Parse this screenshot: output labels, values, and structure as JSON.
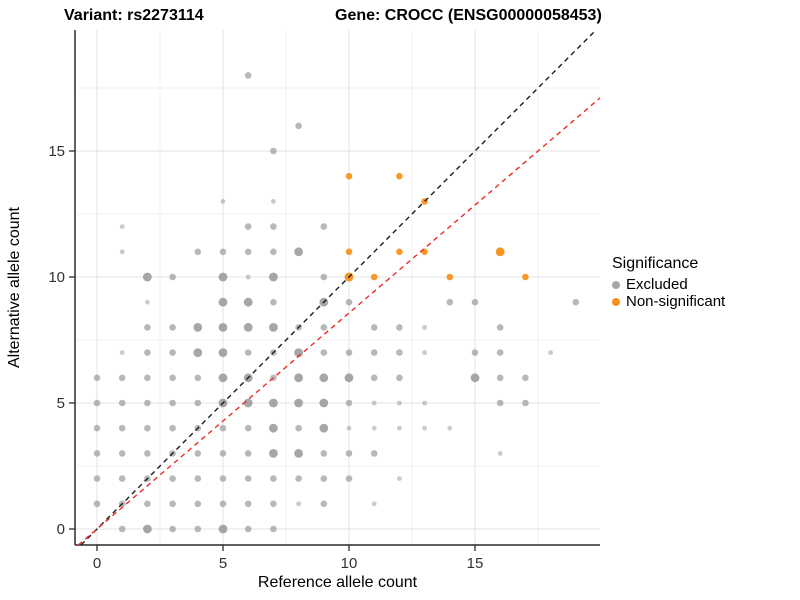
{
  "titles": {
    "variant": "Variant: rs2273114",
    "gene": "Gene: CROCC (ENSG00000058453)"
  },
  "axes": {
    "x": {
      "label": "Reference allele count",
      "tick_values": [
        0,
        5,
        10,
        15
      ],
      "tick_labels": [
        "0",
        "5",
        "10",
        "15"
      ]
    },
    "y": {
      "label": "Alternative allele count",
      "tick_values": [
        0,
        5,
        10,
        15
      ],
      "tick_labels": [
        "0",
        "5",
        "10",
        "15"
      ]
    }
  },
  "legend": {
    "title": "Significance",
    "position": "right",
    "items": [
      {
        "label": "Excluded",
        "color": "#A6A6A6"
      },
      {
        "label": "Non-significant",
        "color": "#F79420"
      }
    ]
  },
  "colors": {
    "background": "#FFFFFF",
    "axis_line": "#2B2B2B",
    "tick_label": "#303030",
    "grid_major": "#E3E3E3",
    "grid_minor": "#F0F0F0",
    "excluded_point": "#969696",
    "non_significant_point": "#F79420",
    "identity_line": "#1A1A1A",
    "fitted_line": "#ED2B24"
  },
  "chart_data": {
    "type": "scatter",
    "title": "Variant: rs2273114  /  Gene: CROCC (ENSG00000058453)",
    "xlabel": "Reference allele count",
    "ylabel": "Alternative allele count",
    "xlim": [
      -0.87,
      19.96
    ],
    "ylim": [
      -0.64,
      19.8
    ],
    "grid": {
      "major": [
        0,
        5,
        10,
        15
      ],
      "minor": [
        2.5,
        7.5,
        12.5,
        17.5
      ],
      "on": true
    },
    "legend_position": "right",
    "radii": {
      "1": 2.4,
      "2": 3.3,
      "3": 4.4
    },
    "series": [
      {
        "name": "Excluded",
        "color": "#969696",
        "opacities": {
          "1": 0.5,
          "2": 0.68,
          "3": 0.85
        },
        "points": [
          [
            6,
            18,
            2
          ],
          [
            8,
            16,
            2
          ],
          [
            7,
            15,
            2
          ],
          [
            5,
            13,
            1
          ],
          [
            7,
            13,
            1
          ],
          [
            1,
            12,
            1
          ],
          [
            6,
            12,
            2
          ],
          [
            7,
            12,
            2
          ],
          [
            9,
            12,
            2
          ],
          [
            1,
            11,
            1
          ],
          [
            4,
            11,
            2
          ],
          [
            5,
            11,
            2
          ],
          [
            6,
            11,
            2
          ],
          [
            7,
            11,
            2
          ],
          [
            8,
            11,
            3
          ],
          [
            2,
            10,
            3
          ],
          [
            3,
            10,
            2
          ],
          [
            5,
            10,
            3
          ],
          [
            6,
            10,
            1
          ],
          [
            7,
            10,
            3
          ],
          [
            9,
            10,
            2
          ],
          [
            2,
            9,
            1
          ],
          [
            5,
            9,
            3
          ],
          [
            6,
            9,
            3
          ],
          [
            7,
            9,
            2
          ],
          [
            9,
            9,
            3
          ],
          [
            10,
            9,
            2
          ],
          [
            14,
            9,
            2
          ],
          [
            15,
            9,
            2
          ],
          [
            19,
            9,
            2
          ],
          [
            2,
            8,
            2
          ],
          [
            3,
            8,
            2
          ],
          [
            4,
            8,
            3
          ],
          [
            5,
            8,
            3
          ],
          [
            6,
            8,
            3
          ],
          [
            7,
            8,
            3
          ],
          [
            8,
            8,
            2
          ],
          [
            9,
            8,
            2
          ],
          [
            11,
            8,
            2
          ],
          [
            12,
            8,
            2
          ],
          [
            13,
            8,
            1
          ],
          [
            16,
            8,
            2
          ],
          [
            1,
            7,
            1
          ],
          [
            2,
            7,
            2
          ],
          [
            3,
            7,
            2
          ],
          [
            4,
            7,
            3
          ],
          [
            5,
            7,
            3
          ],
          [
            6,
            7,
            2
          ],
          [
            7,
            7,
            2
          ],
          [
            8,
            7,
            3
          ],
          [
            9,
            7,
            2
          ],
          [
            10,
            7,
            2
          ],
          [
            11,
            7,
            2
          ],
          [
            12,
            7,
            2
          ],
          [
            13,
            7,
            1
          ],
          [
            15,
            7,
            2
          ],
          [
            16,
            7,
            2
          ],
          [
            18,
            7,
            1
          ],
          [
            0,
            6,
            2
          ],
          [
            1,
            6,
            2
          ],
          [
            2,
            6,
            2
          ],
          [
            3,
            6,
            2
          ],
          [
            4,
            6,
            2
          ],
          [
            5,
            6,
            3
          ],
          [
            6,
            6,
            3
          ],
          [
            7,
            6,
            2
          ],
          [
            8,
            6,
            3
          ],
          [
            9,
            6,
            3
          ],
          [
            10,
            6,
            3
          ],
          [
            11,
            6,
            2
          ],
          [
            12,
            6,
            2
          ],
          [
            15,
            6,
            3
          ],
          [
            16,
            6,
            2
          ],
          [
            17,
            6,
            2
          ],
          [
            0,
            5,
            2
          ],
          [
            1,
            5,
            2
          ],
          [
            2,
            5,
            2
          ],
          [
            3,
            5,
            2
          ],
          [
            4,
            5,
            2
          ],
          [
            5,
            5,
            3
          ],
          [
            6,
            5,
            3
          ],
          [
            7,
            5,
            3
          ],
          [
            8,
            5,
            3
          ],
          [
            9,
            5,
            3
          ],
          [
            10,
            5,
            2
          ],
          [
            11,
            5,
            1
          ],
          [
            12,
            5,
            1
          ],
          [
            13,
            5,
            1
          ],
          [
            16,
            5,
            2
          ],
          [
            17,
            5,
            2
          ],
          [
            0,
            4,
            2
          ],
          [
            1,
            4,
            2
          ],
          [
            2,
            4,
            2
          ],
          [
            3,
            4,
            2
          ],
          [
            4,
            4,
            2
          ],
          [
            5,
            4,
            2
          ],
          [
            6,
            4,
            2
          ],
          [
            7,
            4,
            3
          ],
          [
            8,
            4,
            2
          ],
          [
            9,
            4,
            3
          ],
          [
            10,
            4,
            1
          ],
          [
            11,
            4,
            1
          ],
          [
            12,
            4,
            1
          ],
          [
            13,
            4,
            1
          ],
          [
            14,
            4,
            1
          ],
          [
            0,
            3,
            2
          ],
          [
            1,
            3,
            2
          ],
          [
            2,
            3,
            2
          ],
          [
            3,
            3,
            2
          ],
          [
            4,
            3,
            2
          ],
          [
            5,
            3,
            2
          ],
          [
            6,
            3,
            2
          ],
          [
            7,
            3,
            3
          ],
          [
            8,
            3,
            3
          ],
          [
            9,
            3,
            2
          ],
          [
            10,
            3,
            2
          ],
          [
            11,
            3,
            2
          ],
          [
            16,
            3,
            1
          ],
          [
            0,
            2,
            2
          ],
          [
            1,
            2,
            2
          ],
          [
            2,
            2,
            2
          ],
          [
            3,
            2,
            2
          ],
          [
            4,
            2,
            2
          ],
          [
            5,
            2,
            2
          ],
          [
            6,
            2,
            2
          ],
          [
            7,
            2,
            2
          ],
          [
            8,
            2,
            2
          ],
          [
            9,
            2,
            2
          ],
          [
            10,
            2,
            2
          ],
          [
            12,
            2,
            1
          ],
          [
            0,
            1,
            2
          ],
          [
            1,
            1,
            2
          ],
          [
            2,
            1,
            2
          ],
          [
            3,
            1,
            2
          ],
          [
            4,
            1,
            2
          ],
          [
            5,
            1,
            2
          ],
          [
            6,
            1,
            2
          ],
          [
            7,
            1,
            2
          ],
          [
            8,
            1,
            1
          ],
          [
            9,
            1,
            2
          ],
          [
            11,
            1,
            1
          ],
          [
            1,
            0,
            2
          ],
          [
            2,
            0,
            3
          ],
          [
            3,
            0,
            2
          ],
          [
            4,
            0,
            2
          ],
          [
            5,
            0,
            3
          ],
          [
            6,
            0,
            2
          ],
          [
            7,
            0,
            2
          ]
        ]
      },
      {
        "name": "Non-significant",
        "color": "#F79420",
        "opacities": {
          "1": 0.85,
          "2": 0.95,
          "3": 1
        },
        "points": [
          [
            10,
            14,
            2
          ],
          [
            12,
            14,
            2
          ],
          [
            13,
            13,
            2
          ],
          [
            10,
            11,
            2
          ],
          [
            12,
            11,
            2
          ],
          [
            13,
            11,
            2
          ],
          [
            16,
            11,
            3
          ],
          [
            10,
            10,
            3
          ],
          [
            11,
            10,
            2
          ],
          [
            14,
            10,
            2
          ],
          [
            17,
            10,
            2
          ]
        ]
      }
    ],
    "lines": [
      {
        "name": "identity",
        "slope": 1,
        "intercept": 0,
        "color": "#1A1A1A",
        "dash": "5 4"
      },
      {
        "name": "fitted-ratio",
        "slope": 0.857,
        "intercept": 0,
        "color": "#ED2B24",
        "dash": "5 4"
      }
    ]
  }
}
